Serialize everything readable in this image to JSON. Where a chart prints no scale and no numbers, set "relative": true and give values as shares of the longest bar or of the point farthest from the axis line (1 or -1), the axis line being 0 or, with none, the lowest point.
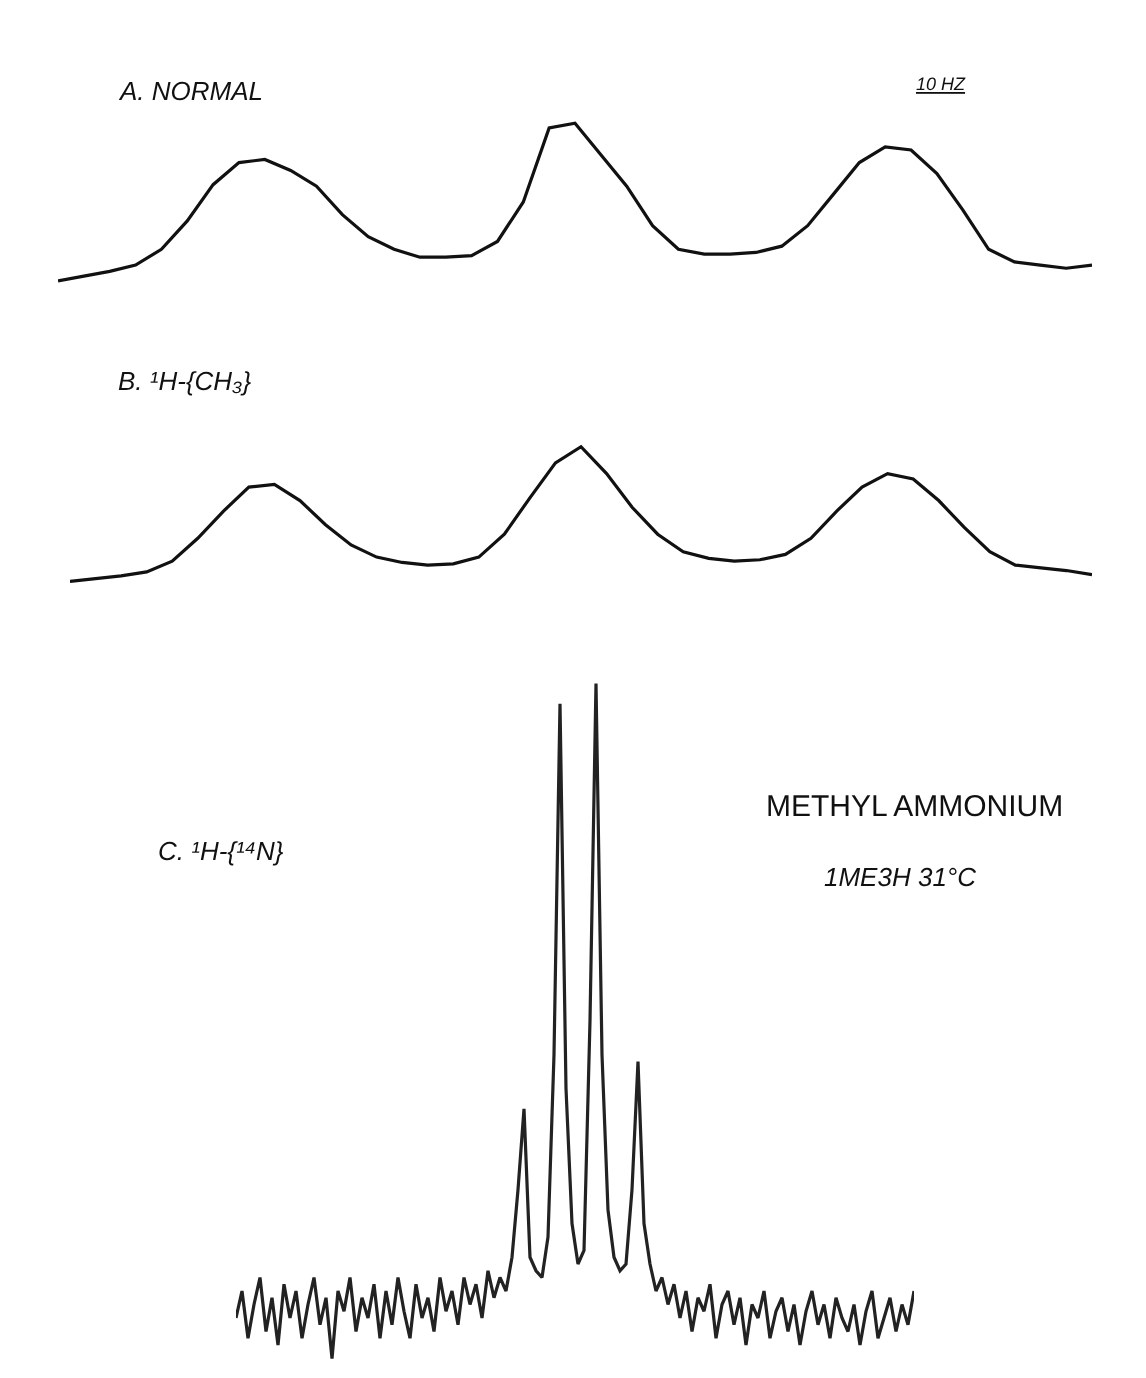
{
  "chart_data": [
    {
      "type": "line",
      "title": "A. NORMAL",
      "relative": true,
      "color": "#111111",
      "annotations": [
        "10 HZ"
      ],
      "categories": [
        null,
        null,
        null,
        null,
        null,
        null,
        null,
        null,
        null,
        null,
        null,
        null,
        null,
        null,
        null,
        null,
        null,
        null,
        null,
        null,
        null,
        null,
        null,
        null,
        null,
        null,
        null,
        null,
        null,
        null,
        null,
        null,
        null,
        null,
        null,
        null,
        null,
        null,
        null,
        null,
        null
      ],
      "values": [
        0,
        0.03,
        0.06,
        0.1,
        0.2,
        0.38,
        0.61,
        0.75,
        0.77,
        0.7,
        0.6,
        0.42,
        0.28,
        0.2,
        0.15,
        0.15,
        0.16,
        0.25,
        0.5,
        0.97,
        1.0,
        0.8,
        0.6,
        0.35,
        0.2,
        0.17,
        0.17,
        0.18,
        0.22,
        0.35,
        0.55,
        0.75,
        0.85,
        0.83,
        0.68,
        0.45,
        0.2,
        0.12,
        0.1,
        0.08,
        0.1
      ]
    },
    {
      "type": "line",
      "title": "B. ¹H-{CH₃}",
      "relative": true,
      "color": "#111111",
      "categories": [
        null,
        null,
        null,
        null,
        null,
        null,
        null,
        null,
        null,
        null,
        null,
        null,
        null,
        null,
        null,
        null,
        null,
        null,
        null,
        null,
        null,
        null,
        null,
        null,
        null,
        null,
        null,
        null,
        null,
        null,
        null,
        null,
        null,
        null,
        null,
        null,
        null,
        null,
        null,
        null,
        null
      ],
      "values": [
        0,
        0.02,
        0.04,
        0.07,
        0.15,
        0.32,
        0.52,
        0.7,
        0.72,
        0.6,
        0.42,
        0.27,
        0.18,
        0.14,
        0.12,
        0.13,
        0.18,
        0.35,
        0.62,
        0.88,
        1.0,
        0.8,
        0.55,
        0.35,
        0.22,
        0.17,
        0.15,
        0.16,
        0.2,
        0.32,
        0.52,
        0.7,
        0.8,
        0.76,
        0.6,
        0.4,
        0.22,
        0.12,
        0.1,
        0.08,
        0.05
      ]
    },
    {
      "type": "line",
      "title": "C. ¹H-{¹⁴N}",
      "relative": true,
      "color": "#222222",
      "annotations": [
        "METHYL AMMONIUM",
        "1ME3H 31°C"
      ],
      "categories": [
        null,
        null,
        null,
        null,
        null,
        null,
        null,
        null,
        null,
        null,
        null,
        null,
        null,
        null,
        null,
        null,
        null,
        null,
        null,
        null,
        null,
        null,
        null,
        null,
        null,
        null,
        null,
        null,
        null,
        null,
        null,
        null,
        null,
        null,
        null,
        null,
        null,
        null,
        null,
        null,
        null,
        null,
        null,
        null,
        null,
        null,
        null,
        null,
        null,
        null,
        null,
        null,
        null,
        null,
        null,
        null,
        null,
        null,
        null,
        null,
        null,
        null,
        null,
        null,
        null,
        null,
        null,
        null,
        null,
        null,
        null,
        null,
        null,
        null,
        null,
        null,
        null,
        null,
        null,
        null,
        null,
        null,
        null,
        null,
        null,
        null,
        null,
        null,
        null,
        null,
        null,
        null,
        null,
        null,
        null,
        null,
        null,
        null,
        null,
        null,
        null,
        null,
        null,
        null,
        null,
        null,
        null,
        null,
        null,
        null,
        null,
        null,
        null,
        null
      ],
      "values": [
        0.06,
        0.1,
        0.03,
        0.08,
        0.12,
        0.04,
        0.09,
        0.02,
        0.11,
        0.06,
        0.1,
        0.03,
        0.08,
        0.12,
        0.05,
        0.09,
        0,
        0.1,
        0.07,
        0.12,
        0.04,
        0.09,
        0.06,
        0.11,
        0.03,
        0.1,
        0.05,
        0.12,
        0.07,
        0.03,
        0.11,
        0.06,
        0.09,
        0.04,
        0.12,
        0.07,
        0.1,
        0.05,
        0.12,
        0.08,
        0.11,
        0.06,
        0.13,
        0.09,
        0.12,
        0.1,
        0.15,
        0.25,
        0.37,
        0.15,
        0.13,
        0.12,
        0.18,
        0.45,
        0.97,
        0.4,
        0.2,
        0.14,
        0.16,
        0.5,
        1.0,
        0.45,
        0.22,
        0.15,
        0.13,
        0.14,
        0.25,
        0.44,
        0.2,
        0.14,
        0.1,
        0.12,
        0.08,
        0.11,
        0.06,
        0.1,
        0.04,
        0.09,
        0.07,
        0.11,
        0.03,
        0.08,
        0.1,
        0.05,
        0.09,
        0.02,
        0.08,
        0.06,
        0.1,
        0.03,
        0.07,
        0.09,
        0.04,
        0.08,
        0.02,
        0.07,
        0.1,
        0.05,
        0.08,
        0.03,
        0.09,
        0.06,
        0.04,
        0.08,
        0.02,
        0.07,
        0.1,
        0.03,
        0.06,
        0.09,
        0.04,
        0.08,
        0.05,
        0.1
      ]
    }
  ]
}
